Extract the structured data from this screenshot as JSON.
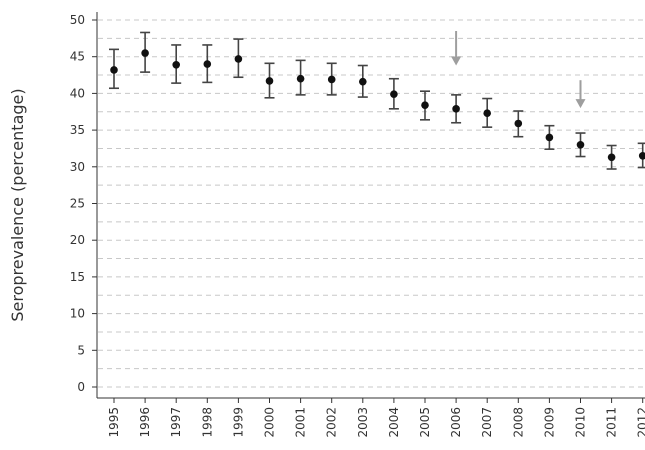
{
  "chart_data": {
    "type": "scatter",
    "title": "",
    "xlabel": "",
    "ylabel": "Seroprevalence (percentage)",
    "ylim": [
      0,
      50
    ],
    "yticks": [
      0,
      5,
      10,
      15,
      20,
      25,
      30,
      35,
      40,
      45,
      50
    ],
    "grid": "dashed horizontal lines at every 2.5 units",
    "categories": [
      "1995",
      "1996",
      "1997",
      "1998",
      "1999",
      "2000",
      "2001",
      "2002",
      "2003",
      "2004",
      "2005",
      "2006",
      "2007",
      "2008",
      "2009",
      "2010",
      "2011",
      "2012"
    ],
    "series": [
      {
        "values": [
          43.2,
          45.5,
          43.9,
          44.0,
          44.7,
          41.7,
          42.0,
          41.9,
          41.6,
          39.9,
          38.4,
          37.9,
          37.3,
          35.9,
          34.0,
          33.0,
          31.3,
          31.5
        ],
        "lower": [
          40.7,
          42.9,
          41.4,
          41.5,
          42.2,
          39.4,
          39.8,
          39.8,
          39.5,
          37.9,
          36.4,
          36.0,
          35.4,
          34.1,
          32.4,
          31.4,
          29.7,
          29.9
        ],
        "upper": [
          46.0,
          48.3,
          46.6,
          46.6,
          47.4,
          44.1,
          44.5,
          44.1,
          43.8,
          42.0,
          40.3,
          39.8,
          39.3,
          37.6,
          35.6,
          34.6,
          32.9,
          33.2
        ]
      }
    ],
    "annotations": [
      {
        "type": "arrow",
        "x": "2006",
        "from_y": 48.5,
        "to_y": 43.8
      },
      {
        "type": "arrow",
        "x": "2010",
        "from_y": 41.8,
        "to_y": 38.0
      }
    ],
    "colors": {
      "points": "#111111",
      "error_bars": "#444444",
      "grid": "#c8c8c8",
      "arrows": "#9e9e9e",
      "axis": "#333333"
    }
  }
}
